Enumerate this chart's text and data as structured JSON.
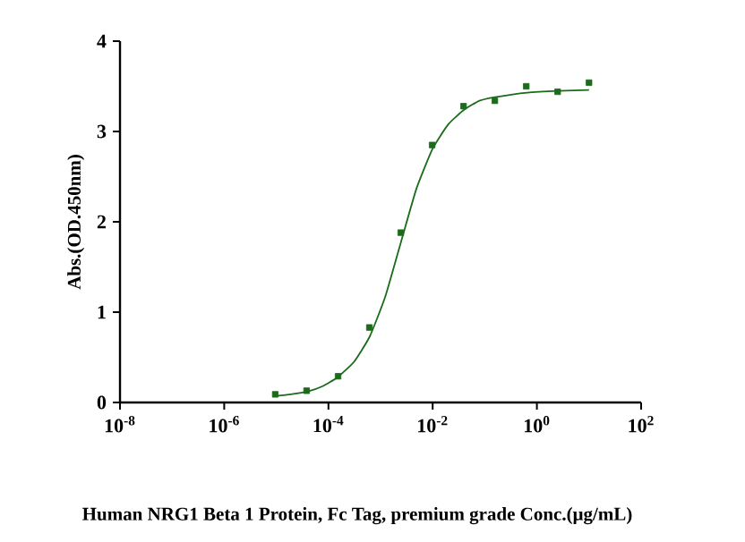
{
  "chart_data": {
    "type": "scatter",
    "xlabel": "Human NRG1 Beta 1 Protein, Fc Tag, premium grade Conc.(μg/mL)",
    "ylabel": "Abs.(OD.450nm)",
    "log": "x",
    "xlim": [
      1e-08,
      100
    ],
    "ylim": [
      0,
      4
    ],
    "xticks": [
      {
        "value": 1e-08,
        "label": "10$^{-8}$"
      },
      {
        "value": 1e-06,
        "label": "10$^{-6}$"
      },
      {
        "value": 0.0001,
        "label": "10$^{-4}$"
      },
      {
        "value": 0.01,
        "label": "10$^{-2}$"
      },
      {
        "value": 1,
        "label": "10$^{0}$"
      },
      {
        "value": 100,
        "label": "10$^{2}$"
      }
    ],
    "yticks": [
      0,
      1,
      2,
      3,
      4
    ],
    "series": [
      {
        "marker": "square",
        "color": "#1a6b1a",
        "x": [
          9.54e-06,
          3.81e-05,
          0.000153,
          0.00061,
          0.00244,
          0.00977,
          0.0391,
          0.156,
          0.625,
          2.5,
          10
        ],
        "values": [
          0.09,
          0.13,
          0.29,
          0.83,
          1.88,
          2.85,
          3.28,
          3.34,
          3.5,
          3.44,
          3.54
        ]
      },
      {
        "type": "line",
        "marker": "none",
        "line_style": "solid",
        "color": "#1a6b1a",
        "x": [
          9.4e-06,
          1.9e-05,
          3.9e-05,
          7.8e-05,
          0.00015,
          0.00031,
          0.00062,
          0.00123,
          0.00245,
          0.0049,
          0.01,
          0.02,
          0.04,
          0.079,
          0.158,
          0.65,
          2.57,
          10
        ],
        "values": [
          0.07,
          0.09,
          0.12,
          0.18,
          0.28,
          0.45,
          0.73,
          1.17,
          1.77,
          2.37,
          2.81,
          3.08,
          3.24,
          3.34,
          3.38,
          3.43,
          3.45,
          3.46
        ]
      }
    ]
  }
}
